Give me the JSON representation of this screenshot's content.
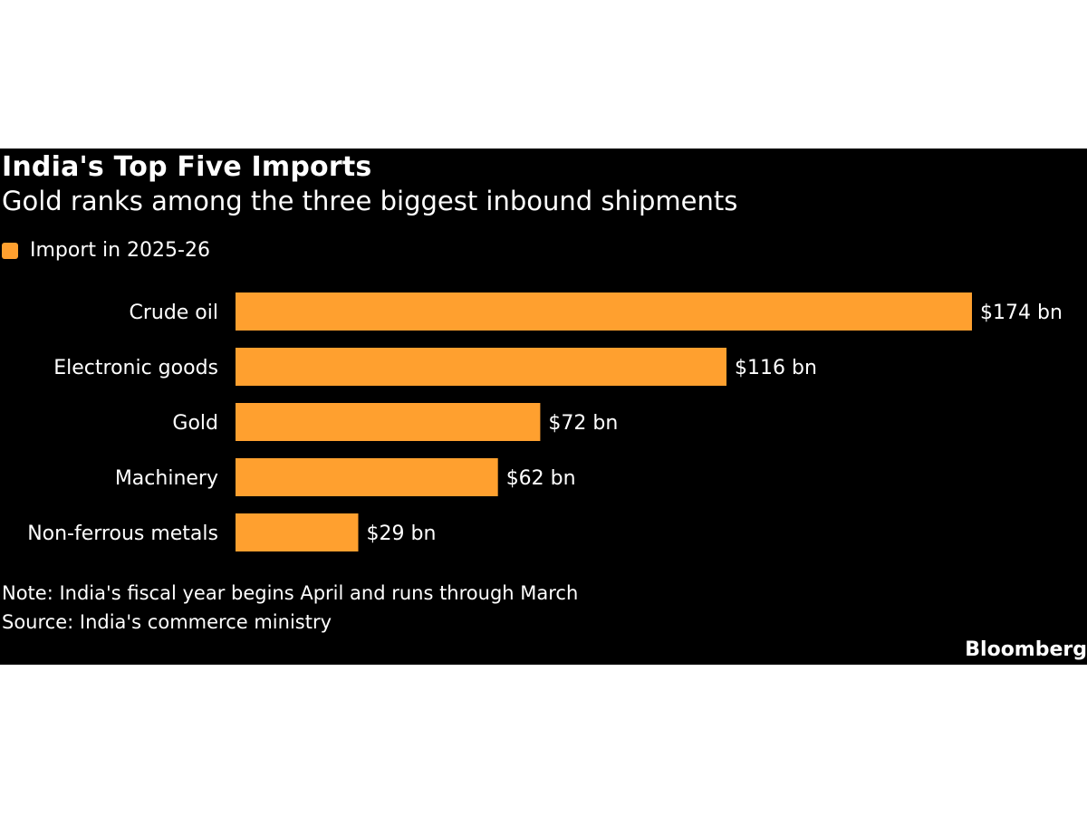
{
  "colors": {
    "background": "#000000",
    "bar": "#FFA02F",
    "text": "#FFFFFF"
  },
  "footer": {
    "note": "Note: India's fiscal year begins April and runs through March",
    "source": "Source: India's commerce ministry",
    "logo": "Bloomberg"
  },
  "chart_data": {
    "type": "bar",
    "orientation": "horizontal",
    "title": "India's Top Five Imports",
    "subtitle": "Gold ranks among the three biggest inbound shipments",
    "categories": [
      "Crude oil",
      "Electronic goods",
      "Gold",
      "Machinery",
      "Non-ferrous metals"
    ],
    "series": [
      {
        "name": "Import in 2025-26",
        "values": [
          174,
          116,
          72,
          62,
          29
        ],
        "labels": [
          "$174 bn",
          "$116 bn",
          "$72 bn",
          "$62 bn",
          "$29 bn"
        ]
      }
    ],
    "xlim": [
      0,
      174
    ],
    "grid": false,
    "legend_position": "top-left"
  }
}
